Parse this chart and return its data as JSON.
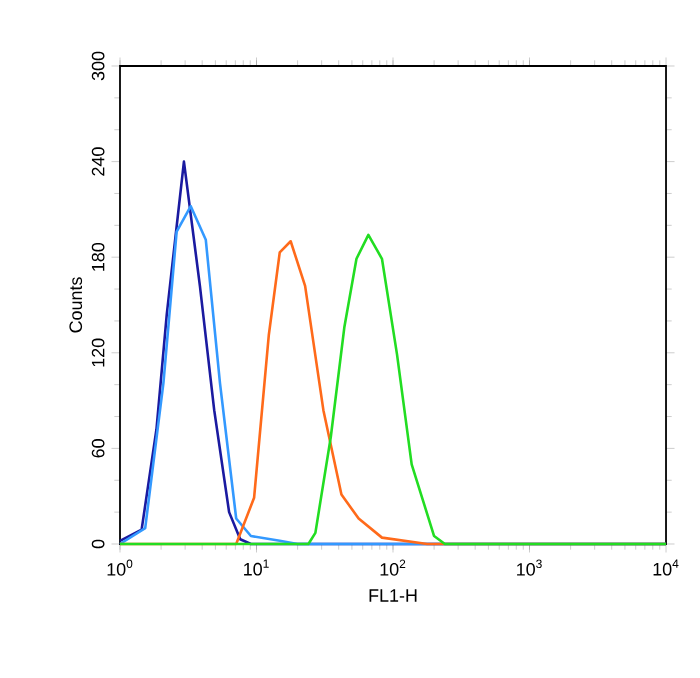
{
  "chart_data": {
    "type": "line",
    "xlabel": "FL1-H",
    "ylabel": "Counts",
    "log": "x",
    "xlim": [
      1,
      10000
    ],
    "ylim": [
      0,
      300
    ],
    "xticks": [
      {
        "value": 1,
        "label": "10$^{0}$"
      },
      {
        "value": 10,
        "label": "10$^{1}$"
      },
      {
        "value": 100,
        "label": "10$^{2}$"
      },
      {
        "value": 1000,
        "label": "10$^{3}$"
      },
      {
        "value": 10000,
        "label": "10$^{4}$"
      }
    ],
    "yticks": [
      0,
      60,
      120,
      180,
      240,
      300
    ],
    "grid": false,
    "marker": "none",
    "line_style": "solid",
    "series": [
      {
        "color": "#1a1aa0",
        "x": [
          1,
          1.44,
          1.85,
          2.2,
          2.94,
          3.85,
          4.9,
          6.3,
          7.6,
          9.1,
          10000
        ],
        "values": [
          2,
          9,
          72,
          144,
          240,
          162,
          84,
          20,
          3,
          0,
          0
        ]
      },
      {
        "color": "#3399ff",
        "x": [
          1,
          1.53,
          2.08,
          2.6,
          3.3,
          4.25,
          5.4,
          7.1,
          9.1,
          14.8,
          20,
          10000
        ],
        "values": [
          0,
          10,
          101,
          196,
          212,
          191,
          101,
          16,
          5,
          2,
          0,
          0
        ]
      },
      {
        "color": "#ff6a1a",
        "x": [
          1,
          7.1,
          9.6,
          12.3,
          14.8,
          17.8,
          22.7,
          30.9,
          41.9,
          56,
          83,
          178,
          10000
        ],
        "values": [
          0,
          0,
          29,
          131,
          183,
          190,
          162,
          84,
          31,
          16,
          4,
          0,
          0
        ]
      },
      {
        "color": "#22dd22",
        "x": [
          1,
          24,
          27,
          35,
          44,
          54,
          66,
          83,
          107,
          137,
          200,
          240,
          10000
        ],
        "values": [
          0,
          0,
          7,
          67,
          136,
          179,
          194,
          179,
          119,
          50,
          5,
          0,
          0
        ]
      }
    ]
  }
}
